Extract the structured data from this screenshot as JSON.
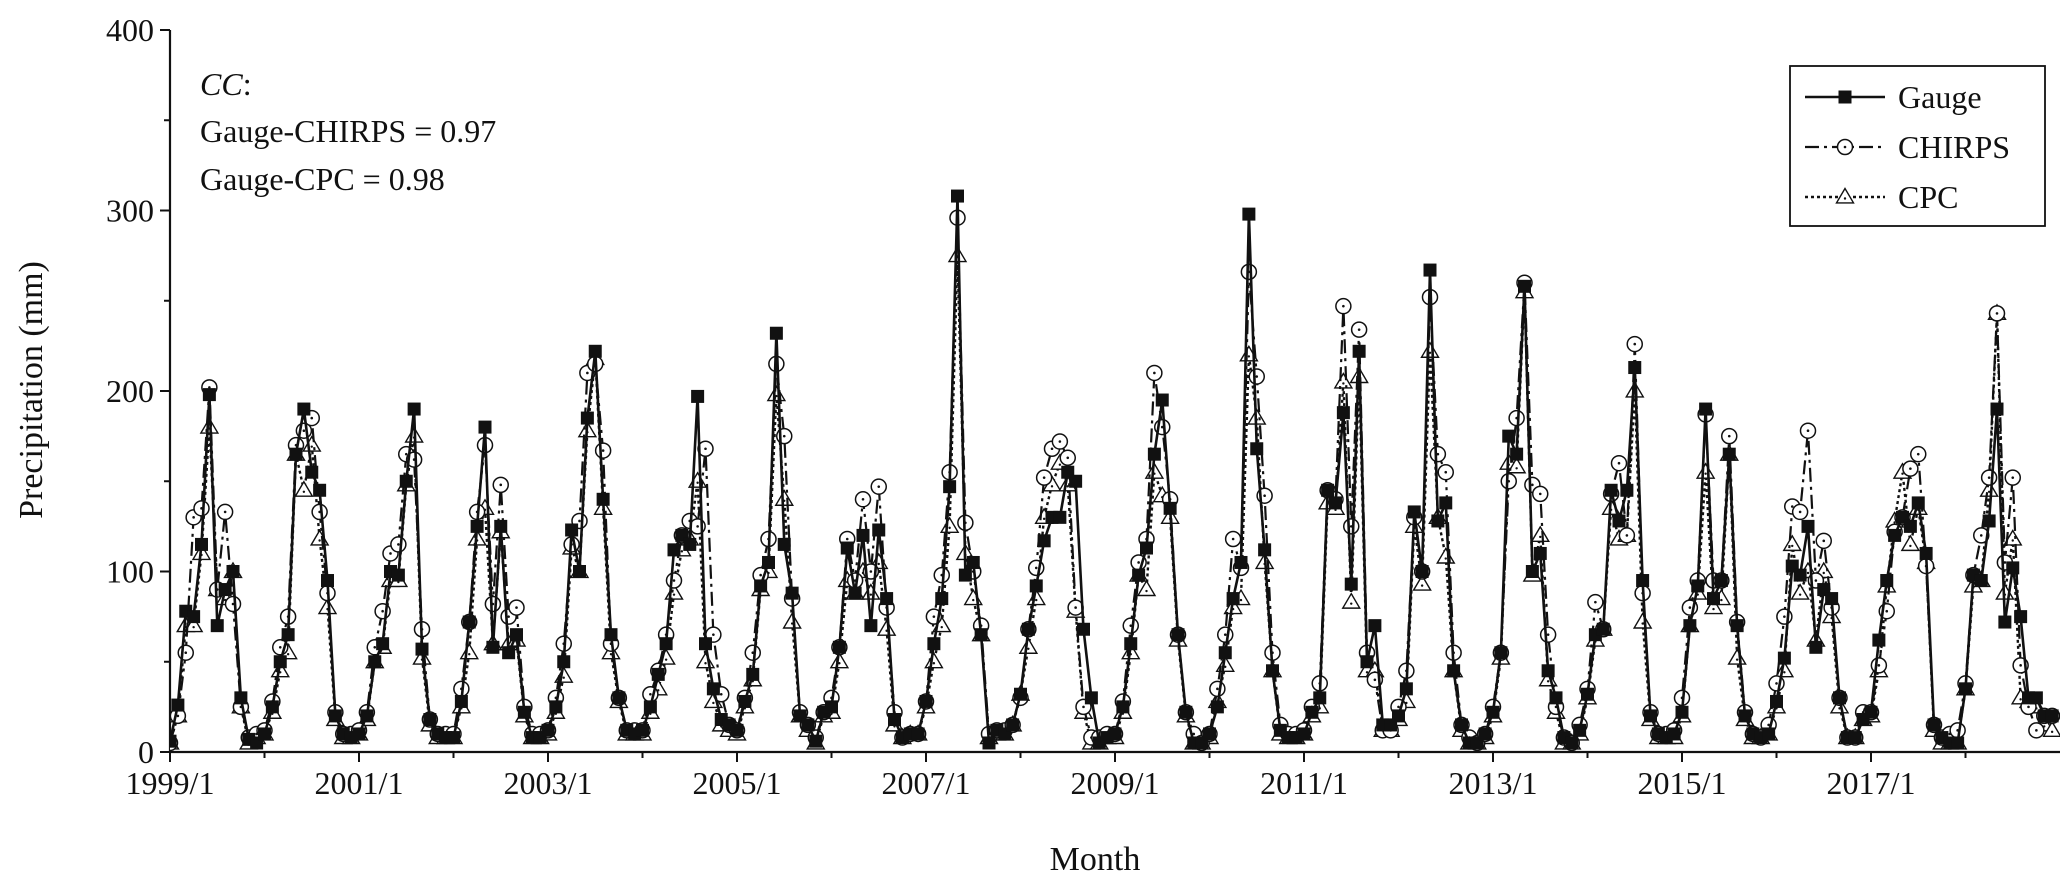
{
  "chart_data": {
    "type": "line",
    "title": "",
    "xlabel": "Month",
    "ylabel": "Precipitation (mm)",
    "xlim": [
      "1999/1",
      "2018/12"
    ],
    "ylim": [
      0,
      400
    ],
    "yticks": [
      0,
      100,
      200,
      300,
      400
    ],
    "xtick_labels": [
      "1999/1",
      "2001/1",
      "2003/1",
      "2005/1",
      "2007/1",
      "2009/1",
      "2011/1",
      "2013/1",
      "2015/1",
      "2017/1"
    ],
    "grid": false,
    "legend_position": "top-right",
    "annotation": {
      "heading": "CC",
      "heading_suffix": ":",
      "lines": [
        "Gauge-CHIRPS = 0.97",
        "Gauge-CPC = 0.98"
      ]
    },
    "series_encoding": "Each year lists 12 monthly values (Jan–Dec) in mm",
    "series": [
      {
        "name": "Gauge",
        "line_style": "solid",
        "marker": "filled-square",
        "values_by_year": {
          "1999": [
            6,
            26,
            78,
            75,
            115,
            198,
            70,
            90,
            100,
            30,
            7,
            5
          ],
          "2000": [
            10,
            25,
            50,
            65,
            165,
            190,
            155,
            145,
            95,
            20,
            10,
            8
          ],
          "2001": [
            10,
            20,
            50,
            60,
            100,
            98,
            150,
            190,
            57,
            18,
            10,
            8
          ],
          "2002": [
            8,
            28,
            72,
            125,
            180,
            58,
            125,
            55,
            65,
            22,
            8,
            8
          ],
          "2003": [
            12,
            25,
            50,
            123,
            100,
            185,
            222,
            140,
            65,
            30,
            12,
            10
          ],
          "2004": [
            12,
            25,
            43,
            60,
            112,
            120,
            115,
            197,
            60,
            35,
            18,
            15
          ],
          "2005": [
            12,
            28,
            43,
            92,
            105,
            232,
            115,
            88,
            20,
            15,
            6,
            22
          ],
          "2006": [
            25,
            58,
            113,
            88,
            120,
            70,
            123,
            85,
            18,
            8,
            10,
            10
          ],
          "2007": [
            28,
            60,
            85,
            147,
            308,
            98,
            105,
            65,
            5,
            12,
            10,
            15
          ],
          "2008": [
            32,
            68,
            92,
            117,
            130,
            130,
            155,
            150,
            68,
            30,
            5,
            8
          ],
          "2009": [
            10,
            25,
            60,
            98,
            113,
            165,
            195,
            135,
            65,
            22,
            5,
            5
          ],
          "2010": [
            10,
            25,
            55,
            85,
            105,
            298,
            168,
            112,
            45,
            12,
            8,
            8
          ],
          "2011": [
            10,
            22,
            30,
            145,
            138,
            188,
            93,
            222,
            50,
            70,
            15,
            15
          ],
          "2012": [
            20,
            35,
            133,
            100,
            267,
            128,
            138,
            45,
            15,
            5,
            5,
            10
          ],
          "2013": [
            22,
            55,
            175,
            165,
            258,
            100,
            110,
            45,
            30,
            8,
            5,
            12
          ],
          "2014": [
            32,
            65,
            68,
            145,
            128,
            145,
            213,
            95,
            20,
            10,
            8,
            10
          ],
          "2015": [
            22,
            70,
            92,
            190,
            85,
            95,
            165,
            70,
            20,
            10,
            8,
            10
          ],
          "2016": [
            28,
            52,
            103,
            98,
            125,
            58,
            90,
            85,
            30,
            8,
            8,
            18
          ],
          "2017": [
            22,
            62,
            95,
            120,
            130,
            125,
            138,
            110,
            15,
            8,
            5,
            5
          ],
          "2018": [
            35,
            98,
            95,
            128,
            190,
            72,
            102,
            75,
            30,
            30,
            20,
            20
          ]
        }
      },
      {
        "name": "CHIRPS",
        "line_style": "dash-dot",
        "marker": "open-circle-with-dot",
        "values_by_year": {
          "1999": [
            5,
            20,
            55,
            130,
            135,
            202,
            90,
            133,
            82,
            25,
            8,
            10
          ],
          "2000": [
            12,
            28,
            58,
            75,
            170,
            178,
            185,
            133,
            88,
            22,
            10,
            10
          ],
          "2001": [
            12,
            22,
            58,
            78,
            110,
            115,
            165,
            162,
            68,
            18,
            10,
            10
          ],
          "2002": [
            10,
            35,
            72,
            133,
            170,
            82,
            148,
            75,
            80,
            25,
            10,
            10
          ],
          "2003": [
            12,
            30,
            60,
            115,
            128,
            210,
            215,
            167,
            60,
            30,
            12,
            12
          ],
          "2004": [
            12,
            32,
            45,
            65,
            95,
            120,
            128,
            125,
            168,
            65,
            32,
            15
          ],
          "2005": [
            12,
            30,
            55,
            98,
            118,
            215,
            175,
            85,
            22,
            15,
            8,
            22
          ],
          "2006": [
            30,
            58,
            118,
            95,
            140,
            100,
            147,
            80,
            22,
            8,
            10,
            10
          ],
          "2007": [
            28,
            75,
            98,
            155,
            296,
            127,
            100,
            70,
            10,
            12,
            12,
            15
          ],
          "2008": [
            30,
            68,
            102,
            152,
            168,
            172,
            163,
            80,
            25,
            8,
            8,
            10
          ],
          "2009": [
            10,
            28,
            70,
            105,
            118,
            210,
            180,
            140,
            65,
            22,
            10,
            5
          ],
          "2010": [
            10,
            35,
            65,
            118,
            102,
            266,
            208,
            142,
            55,
            15,
            10,
            10
          ],
          "2011": [
            12,
            25,
            38,
            145,
            140,
            247,
            125,
            234,
            55,
            40,
            12,
            12
          ],
          "2012": [
            25,
            45,
            130,
            100,
            252,
            165,
            155,
            55,
            15,
            8,
            5,
            10
          ],
          "2013": [
            25,
            55,
            150,
            185,
            260,
            148,
            143,
            65,
            25,
            8,
            5,
            15
          ],
          "2014": [
            35,
            83,
            68,
            143,
            160,
            120,
            226,
            88,
            22,
            10,
            10,
            12
          ],
          "2015": [
            30,
            80,
            95,
            187,
            95,
            95,
            175,
            72,
            22,
            10,
            8,
            15
          ],
          "2016": [
            38,
            75,
            136,
            133,
            178,
            95,
            117,
            80,
            30,
            8,
            8,
            22
          ],
          "2017": [
            22,
            48,
            78,
            122,
            130,
            157,
            165,
            103,
            15,
            8,
            10,
            12
          ],
          "2018": [
            38,
            98,
            120,
            152,
            243,
            105,
            152,
            48,
            25,
            12,
            20,
            20
          ]
        }
      },
      {
        "name": "CPC",
        "line_style": "dotted",
        "marker": "open-triangle-with-dot",
        "values_by_year": {
          "1999": [
            5,
            20,
            70,
            70,
            110,
            180,
            90,
            85,
            100,
            25,
            5,
            8
          ],
          "2000": [
            10,
            22,
            45,
            55,
            165,
            145,
            170,
            118,
            80,
            18,
            8,
            8
          ],
          "2001": [
            10,
            18,
            50,
            58,
            95,
            95,
            148,
            175,
            52,
            15,
            8,
            8
          ],
          "2002": [
            8,
            25,
            55,
            118,
            135,
            60,
            122,
            60,
            62,
            20,
            8,
            8
          ],
          "2003": [
            10,
            22,
            42,
            113,
            100,
            178,
            218,
            135,
            55,
            28,
            10,
            10
          ],
          "2004": [
            10,
            22,
            35,
            52,
            88,
            112,
            118,
            150,
            50,
            28,
            15,
            12
          ],
          "2005": [
            10,
            25,
            40,
            90,
            100,
            198,
            140,
            72,
            20,
            12,
            5,
            20
          ],
          "2006": [
            22,
            50,
            95,
            88,
            100,
            88,
            105,
            68,
            15,
            8,
            10,
            10
          ],
          "2007": [
            25,
            50,
            70,
            125,
            275,
            110,
            85,
            65,
            8,
            10,
            10,
            15
          ],
          "2008": [
            32,
            58,
            85,
            130,
            148,
            160,
            148,
            78,
            22,
            5,
            5,
            8
          ],
          "2009": [
            8,
            22,
            55,
            98,
            90,
            155,
            142,
            130,
            62,
            20,
            5,
            5
          ],
          "2010": [
            8,
            28,
            48,
            80,
            85,
            220,
            185,
            105,
            45,
            10,
            8,
            8
          ],
          "2011": [
            10,
            20,
            25,
            138,
            135,
            205,
            83,
            208,
            45,
            45,
            12,
            12
          ],
          "2012": [
            18,
            28,
            125,
            93,
            222,
            130,
            108,
            45,
            12,
            5,
            5,
            8
          ],
          "2013": [
            20,
            52,
            160,
            158,
            255,
            98,
            120,
            40,
            22,
            5,
            5,
            10
          ],
          "2014": [
            30,
            62,
            68,
            135,
            118,
            120,
            200,
            72,
            18,
            8,
            8,
            8
          ],
          "2015": [
            20,
            70,
            88,
            155,
            80,
            85,
            165,
            52,
            18,
            8,
            8,
            10
          ],
          "2016": [
            25,
            45,
            115,
            88,
            100,
            62,
            100,
            75,
            25,
            8,
            8,
            18
          ],
          "2017": [
            20,
            45,
            92,
            128,
            155,
            115,
            135,
            105,
            12,
            5,
            5,
            5
          ],
          "2018": [
            35,
            92,
            95,
            145,
            243,
            88,
            118,
            30,
            28,
            25,
            15,
            12
          ]
        }
      }
    ]
  }
}
